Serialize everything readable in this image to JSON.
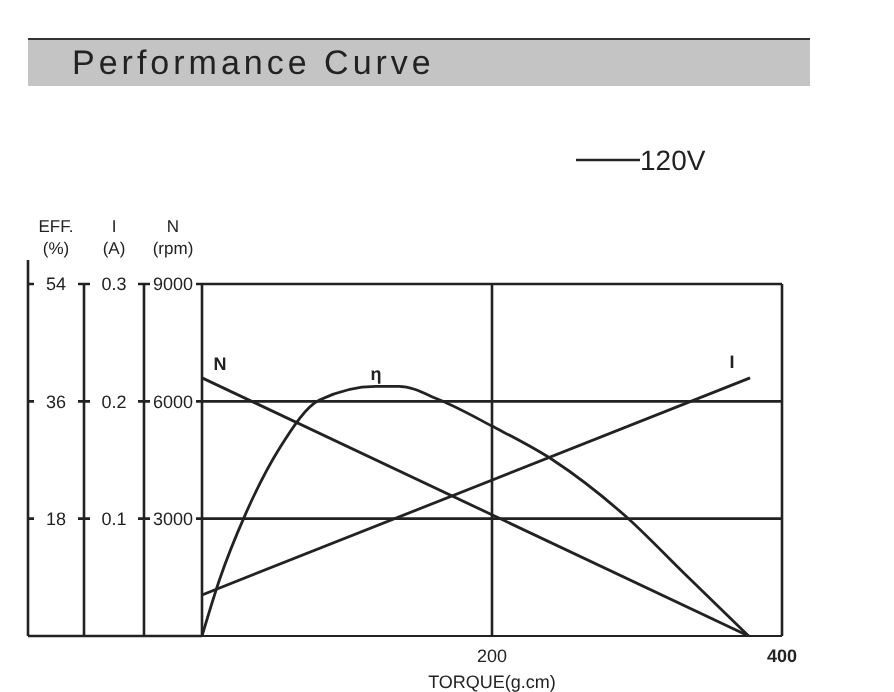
{
  "chart_data": {
    "type": "line",
    "title": "Performance Curve",
    "xlabel": "TORQUE(g.cm)",
    "ylabel": "EFF. (%)",
    "y2label": "I (A)",
    "y3label": "N (rpm)",
    "annotations": [
      "120V"
    ],
    "xlim": [
      0,
      400
    ],
    "xticks": [
      200,
      400
    ],
    "ylim": [
      0,
      54
    ],
    "yticks": [
      18,
      36,
      54
    ],
    "y2lim": [
      0,
      0.3
    ],
    "y2ticks": [
      0.1,
      0.2,
      0.3
    ],
    "y3lim": [
      0,
      9000
    ],
    "y3ticks": [
      3000,
      6000,
      9000
    ],
    "grid": true,
    "marker": "none",
    "line_style": "solid",
    "series": [
      {
        "name": "N",
        "color": "#222222",
        "axis": "y3",
        "x": [
          0,
          377
        ],
        "values": [
          6600,
          0
        ]
      },
      {
        "name": "η",
        "color": "#222222",
        "axis": "y",
        "x": [
          0,
          12,
          30,
          54,
          81,
          120,
          136,
          164,
          200,
          242,
          292,
          333,
          377
        ],
        "values": [
          0,
          8.6,
          18.7,
          29,
          36.2,
          38.3,
          38.3,
          36.2,
          32.2,
          27,
          18.4,
          9.5,
          0
        ]
      },
      {
        "name": "I",
        "color": "#222222",
        "axis": "y2",
        "x": [
          0,
          378
        ],
        "values": [
          0.035,
          0.22
        ]
      }
    ]
  }
}
